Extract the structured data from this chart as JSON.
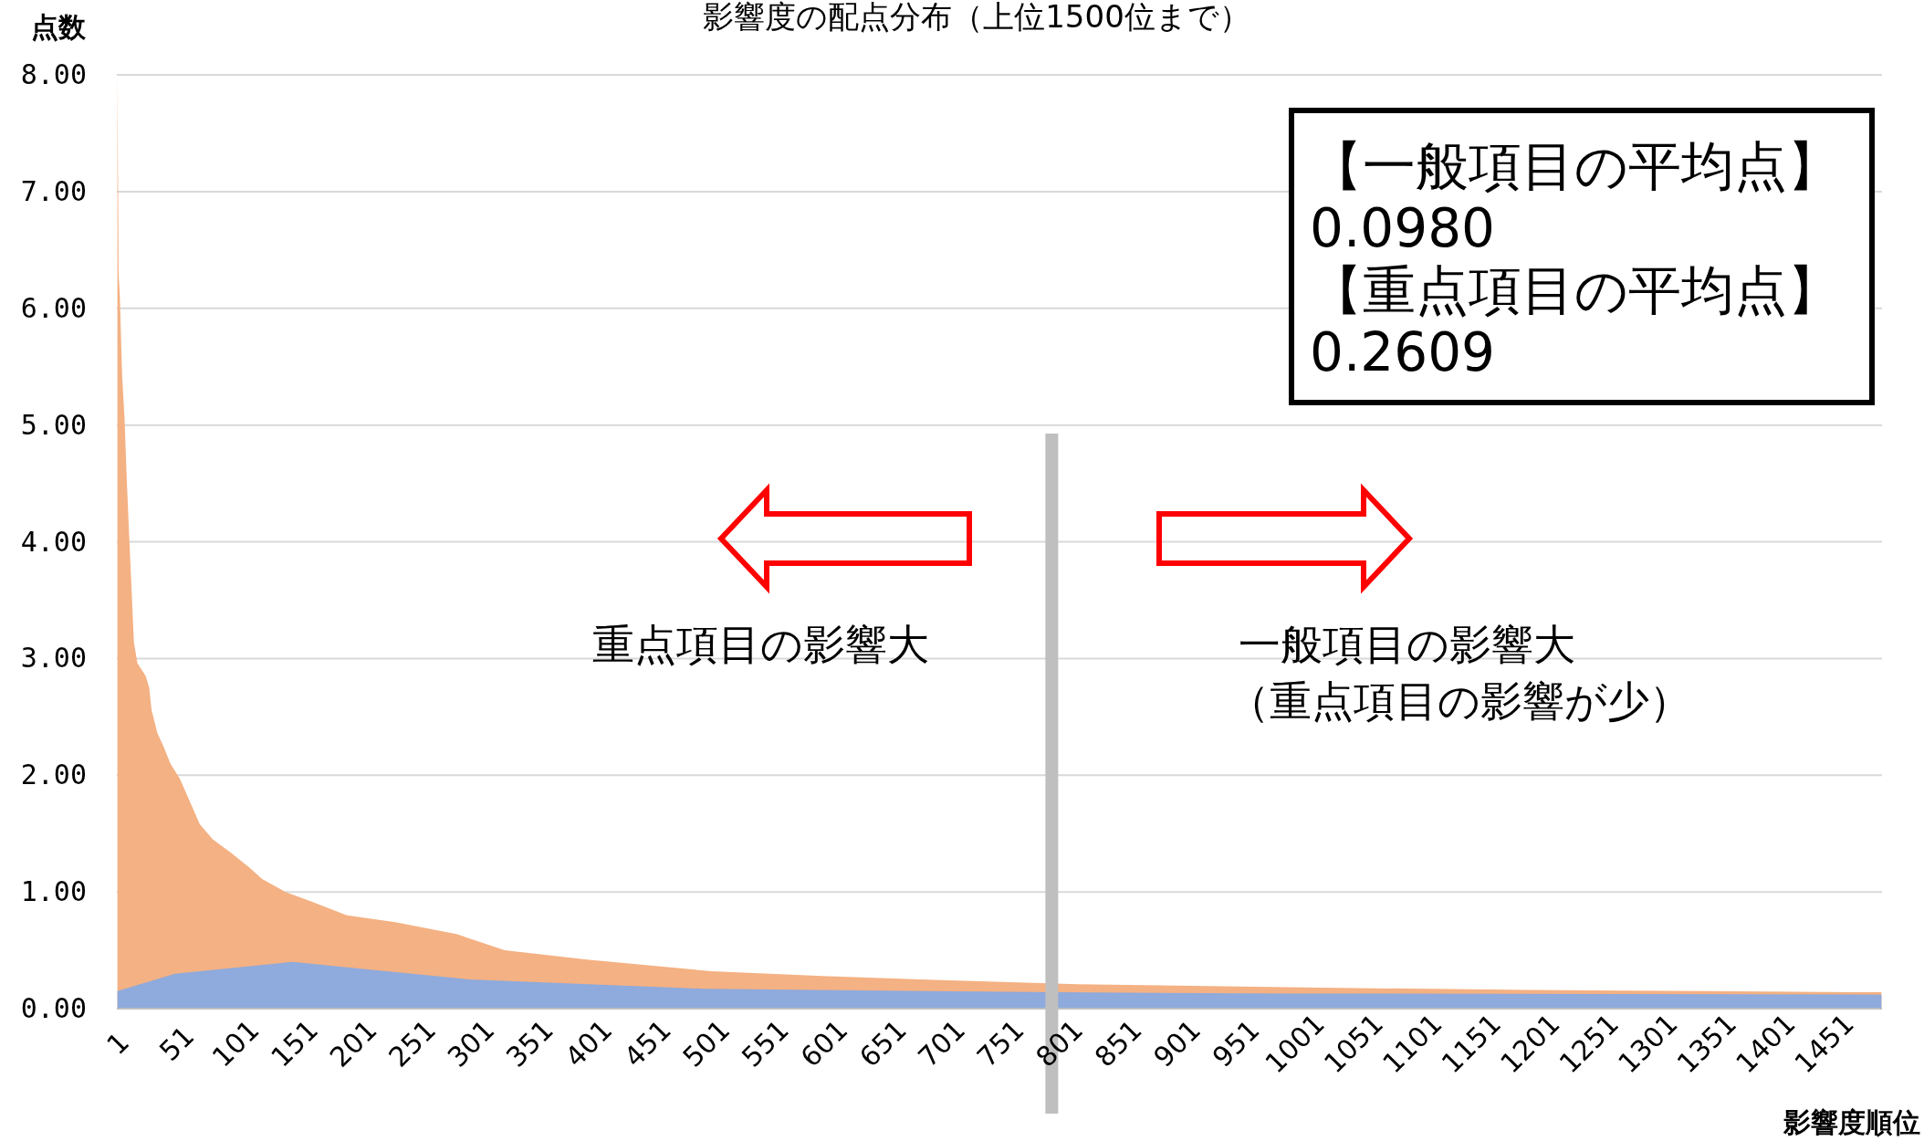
{
  "chart_data": {
    "type": "area",
    "title": "影響度の配点分布（上位1500位まで）",
    "xlabel": "影響度順位",
    "ylabel": "点数",
    "x": [
      1,
      2,
      3,
      5,
      7,
      9,
      11,
      13,
      15,
      18,
      25,
      28,
      30,
      35,
      40,
      46,
      54,
      61,
      71,
      82,
      97,
      113,
      124,
      144,
      165,
      196,
      237,
      289,
      330,
      400,
      506,
      600,
      684,
      817,
      1022,
      1200,
      1350,
      1500
    ],
    "series": [
      {
        "color": "#f4b183",
        "values": [
          8.0,
          6.3,
          6.12,
          5.43,
          5.07,
          4.52,
          4.05,
          3.6,
          3.14,
          2.96,
          2.85,
          2.75,
          2.56,
          2.36,
          2.25,
          2.1,
          1.97,
          1.81,
          1.58,
          1.45,
          1.34,
          1.21,
          1.11,
          1.0,
          0.92,
          0.8,
          0.74,
          0.64,
          0.5,
          0.42,
          0.32,
          0.28,
          0.25,
          0.21,
          0.18,
          0.16,
          0.15,
          0.14
        ]
      },
      {
        "color": "#8faadc",
        "x": [
          1,
          50,
          150,
          200,
          300,
          500,
          800,
          1000,
          1500
        ],
        "values": [
          0.15,
          0.3,
          0.4,
          0.35,
          0.25,
          0.17,
          0.14,
          0.13,
          0.12
        ]
      }
    ],
    "xlim": [
      0.5,
      1500.5
    ],
    "xticks": [
      1,
      51,
      101,
      151,
      201,
      251,
      301,
      351,
      401,
      451,
      501,
      551,
      601,
      651,
      701,
      751,
      801,
      851,
      901,
      951,
      1001,
      1051,
      1101,
      1151,
      1201,
      1251,
      1301,
      1351,
      1401,
      1451
    ],
    "ylim": [
      0,
      8
    ],
    "yticks": [
      {
        "value": 0,
        "label": "0.00"
      },
      {
        "value": 1,
        "label": "1.00"
      },
      {
        "value": 2,
        "label": "2.00"
      },
      {
        "value": 3,
        "label": "3.00"
      },
      {
        "value": 4,
        "label": "4.00"
      },
      {
        "value": 5,
        "label": "5.00"
      },
      {
        "value": 6,
        "label": "6.00"
      },
      {
        "value": 7,
        "label": "7.00"
      },
      {
        "value": 8,
        "label": "8.00"
      }
    ],
    "grid": "y",
    "ref_lines": [
      {
        "axis": "x",
        "value": 795,
        "color": "#bfbfbf"
      }
    ],
    "annotations": [
      "【一般項目の平均点】\n0.0980\n【重点項目の平均点】\n0.2609",
      "重点項目の影響大",
      "一般項目の影響大",
      "（重点項目の影響が少）"
    ]
  }
}
